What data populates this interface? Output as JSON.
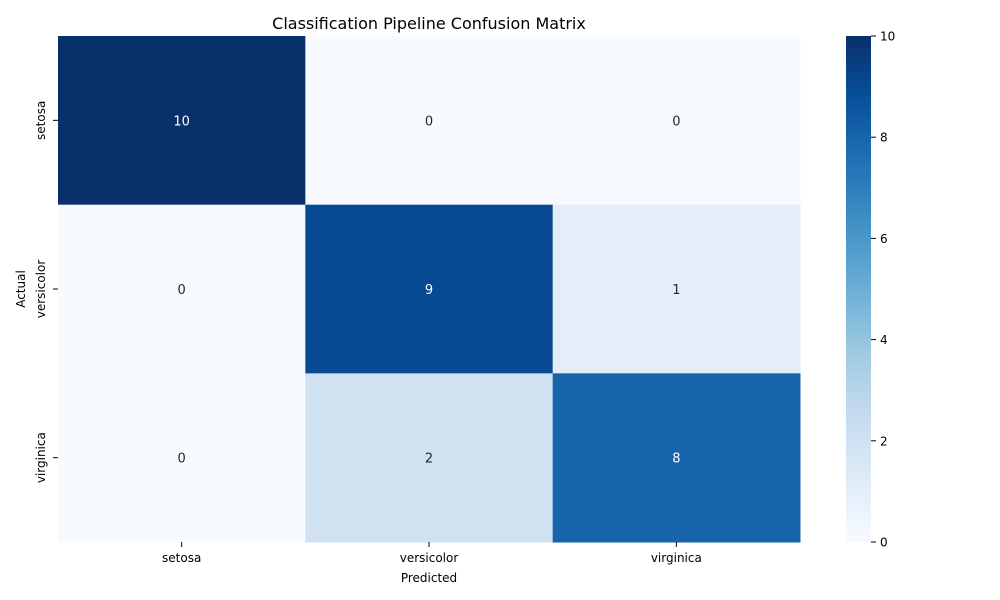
{
  "chart_data": {
    "type": "heatmap",
    "title": "Classification Pipeline Confusion Matrix",
    "xlabel": "Predicted",
    "ylabel": "Actual",
    "x_categories": [
      "setosa",
      "versicolor",
      "virginica"
    ],
    "y_categories": [
      "setosa",
      "versicolor",
      "virginica"
    ],
    "values": [
      [
        10,
        0,
        0
      ],
      [
        0,
        9,
        1
      ],
      [
        0,
        2,
        8
      ]
    ],
    "annotations": true,
    "colormap": "Blues",
    "color_low": "#f7fbff",
    "color_high": "#08306b",
    "colorbar": {
      "range": [
        0,
        10
      ],
      "ticks": [
        "0",
        "2",
        "4",
        "6",
        "8",
        "10"
      ]
    },
    "grid": false
  }
}
